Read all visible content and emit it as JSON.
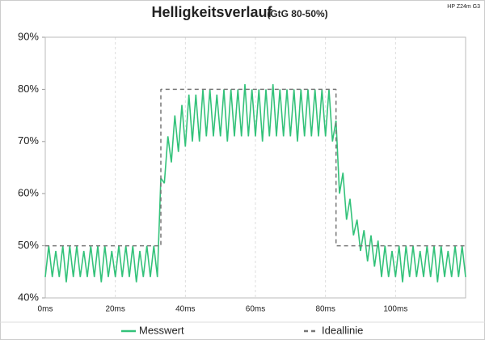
{
  "chart_data": {
    "type": "line",
    "title": "Helligkeitsverlauf",
    "subtitle": "(GtG 80-50%)",
    "annotation": "HP Z24m G3",
    "xlim": [
      0,
      120
    ],
    "xticks": [
      {
        "value": 0,
        "label": "0ms"
      },
      {
        "value": 20,
        "label": "20ms"
      },
      {
        "value": 40,
        "label": "40ms"
      },
      {
        "value": 60,
        "label": "60ms"
      },
      {
        "value": 80,
        "label": "80ms"
      },
      {
        "value": 100,
        "label": "100ms"
      }
    ],
    "ylim": [
      40,
      90
    ],
    "yticks": [
      {
        "value": 40,
        "label": "40%"
      },
      {
        "value": 50,
        "label": "50%"
      },
      {
        "value": 60,
        "label": "60%"
      },
      {
        "value": 70,
        "label": "70%"
      },
      {
        "value": 80,
        "label": "80%"
      },
      {
        "value": 90,
        "label": "90%"
      }
    ],
    "grid": true,
    "series": [
      {
        "name": "Messwert",
        "color": "#33c27a",
        "dashed": false,
        "x": [
          0,
          1,
          2,
          3,
          4,
          5,
          6,
          7,
          8,
          9,
          10,
          11,
          12,
          13,
          14,
          15,
          16,
          17,
          18,
          19,
          20,
          21,
          22,
          23,
          24,
          25,
          26,
          27,
          28,
          29,
          30,
          31,
          32,
          33,
          34,
          35,
          36,
          37,
          38,
          39,
          40,
          41,
          42,
          43,
          44,
          45,
          46,
          47,
          48,
          49,
          50,
          51,
          52,
          53,
          54,
          55,
          56,
          57,
          58,
          59,
          60,
          61,
          62,
          63,
          64,
          65,
          66,
          67,
          68,
          69,
          70,
          71,
          72,
          73,
          74,
          75,
          76,
          77,
          78,
          79,
          80,
          81,
          82,
          83,
          84,
          85,
          86,
          87,
          88,
          89,
          90,
          91,
          92,
          93,
          94,
          95,
          96,
          97,
          98,
          99,
          100,
          101,
          102,
          103,
          104,
          105,
          106,
          107,
          108,
          109,
          110,
          111,
          112,
          113,
          114,
          115,
          116,
          117,
          118,
          119,
          120
        ],
        "values": [
          44,
          50,
          44,
          49,
          44,
          50,
          43,
          50,
          44,
          50,
          44,
          49,
          44,
          50,
          44,
          50,
          43,
          50,
          44,
          49,
          44,
          50,
          44,
          50,
          44,
          50,
          43,
          49,
          44,
          50,
          44,
          50,
          44,
          63,
          62,
          71,
          66,
          75,
          68,
          77,
          69,
          79,
          70,
          79,
          70,
          80,
          71,
          80,
          71,
          79,
          71,
          80,
          70,
          80,
          71,
          80,
          71,
          81,
          71,
          80,
          71,
          80,
          70,
          80,
          71,
          81,
          71,
          80,
          71,
          80,
          71,
          80,
          70,
          80,
          71,
          80,
          71,
          80,
          71,
          80,
          71,
          80,
          70,
          74,
          60,
          64,
          55,
          59,
          52,
          55,
          49,
          53,
          47,
          52,
          46,
          51,
          44,
          50,
          44,
          49,
          44,
          50,
          43,
          50,
          44,
          50,
          44,
          49,
          44,
          50,
          44,
          50,
          43,
          50,
          44,
          49,
          44,
          50,
          44,
          50,
          44
        ]
      },
      {
        "name": "Ideallinie",
        "color": "#777777",
        "dashed": true,
        "x": [
          0,
          33,
          33,
          83,
          83,
          120
        ],
        "values": [
          50,
          50,
          80,
          80,
          50,
          50
        ]
      }
    ]
  }
}
